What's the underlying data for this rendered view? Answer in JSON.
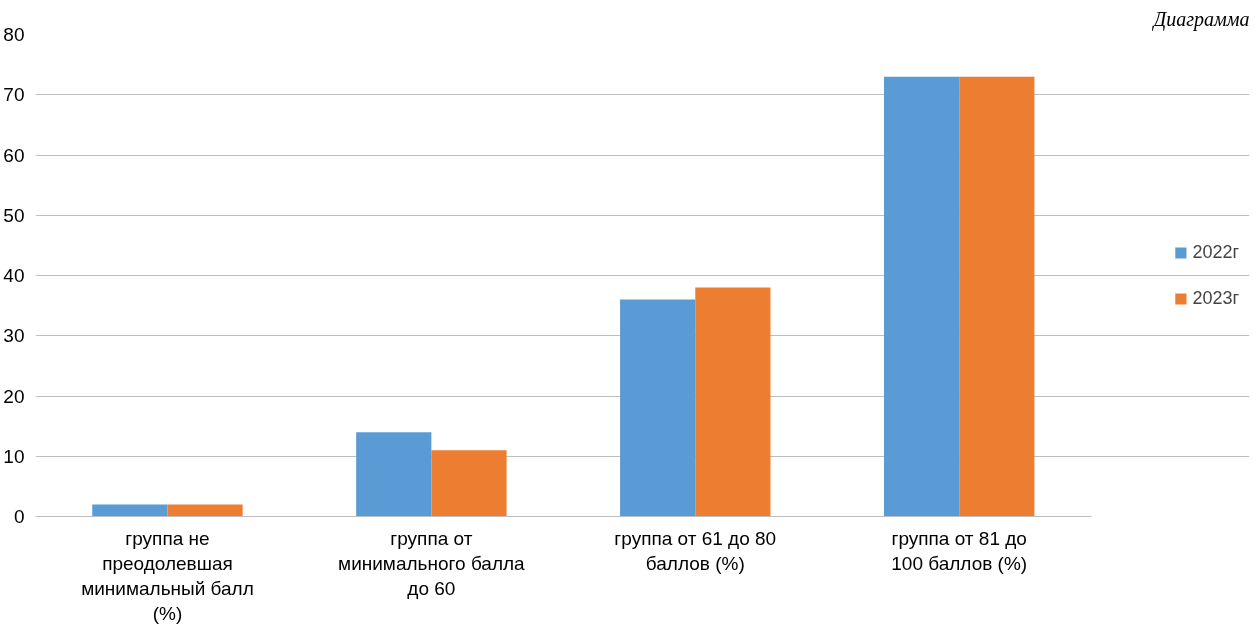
{
  "chart_data": {
    "type": "bar",
    "title": "Диаграмма",
    "categories": [
      "группа не преодолевшая минимальный балл (%)",
      "группа от минимального балла до 60",
      "группа от 61 до 80 баллов (%)",
      "группа от 81 до 100 баллов (%)"
    ],
    "series": [
      {
        "name": "2022г",
        "color": "#5b9bd5",
        "values": [
          2,
          14,
          36,
          73
        ]
      },
      {
        "name": "2023г",
        "color": "#ed7d31",
        "values": [
          2,
          11,
          38,
          73
        ]
      }
    ],
    "ylim": [
      0,
      80
    ],
    "yticks": [
      0,
      10,
      20,
      30,
      40,
      50,
      60,
      70,
      80
    ],
    "grid": "y",
    "legend": "right"
  }
}
